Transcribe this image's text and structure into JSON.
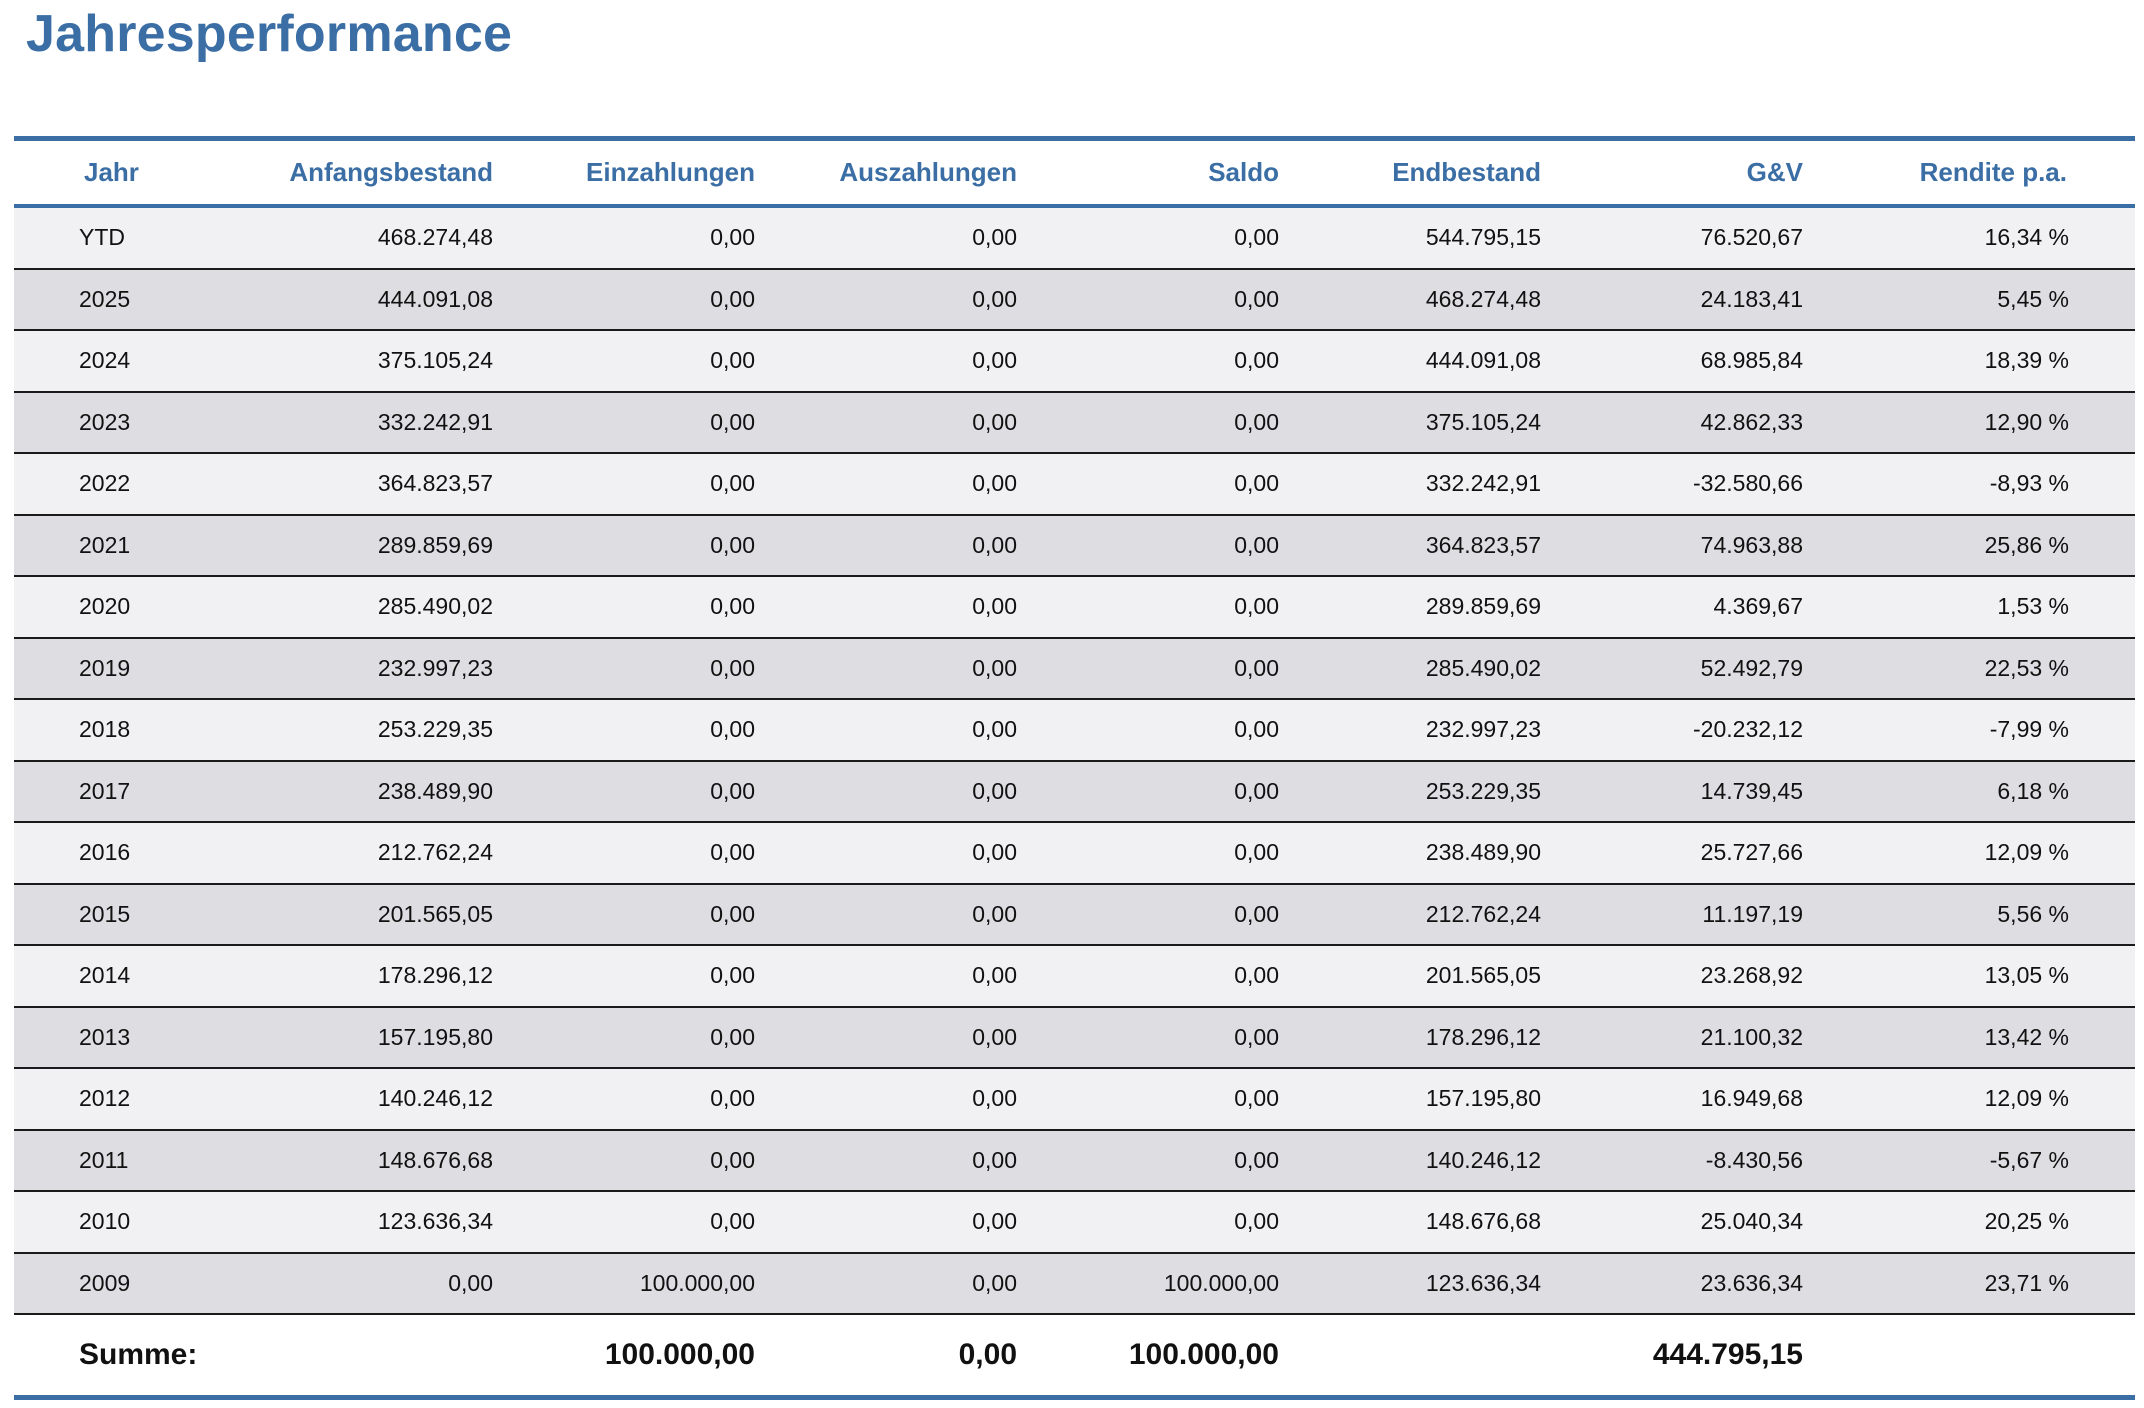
{
  "title": "Jahresperformance",
  "columns": {
    "jahr": "Jahr",
    "anfangsbestand": "Anfangsbestand",
    "einzahlungen": "Einzahlungen",
    "auszahlungen": "Auszahlungen",
    "saldo": "Saldo",
    "endbestand": "Endbestand",
    "guv": "G&V",
    "rendite": "Rendite p.a."
  },
  "rows": [
    [
      "YTD",
      "468.274,48",
      "0,00",
      "0,00",
      "0,00",
      "544.795,15",
      "76.520,67",
      "16,34 %"
    ],
    [
      "2025",
      "444.091,08",
      "0,00",
      "0,00",
      "0,00",
      "468.274,48",
      "24.183,41",
      "5,45 %"
    ],
    [
      "2024",
      "375.105,24",
      "0,00",
      "0,00",
      "0,00",
      "444.091,08",
      "68.985,84",
      "18,39 %"
    ],
    [
      "2023",
      "332.242,91",
      "0,00",
      "0,00",
      "0,00",
      "375.105,24",
      "42.862,33",
      "12,90 %"
    ],
    [
      "2022",
      "364.823,57",
      "0,00",
      "0,00",
      "0,00",
      "332.242,91",
      "-32.580,66",
      "-8,93 %"
    ],
    [
      "2021",
      "289.859,69",
      "0,00",
      "0,00",
      "0,00",
      "364.823,57",
      "74.963,88",
      "25,86 %"
    ],
    [
      "2020",
      "285.490,02",
      "0,00",
      "0,00",
      "0,00",
      "289.859,69",
      "4.369,67",
      "1,53 %"
    ],
    [
      "2019",
      "232.997,23",
      "0,00",
      "0,00",
      "0,00",
      "285.490,02",
      "52.492,79",
      "22,53 %"
    ],
    [
      "2018",
      "253.229,35",
      "0,00",
      "0,00",
      "0,00",
      "232.997,23",
      "-20.232,12",
      "-7,99 %"
    ],
    [
      "2017",
      "238.489,90",
      "0,00",
      "0,00",
      "0,00",
      "253.229,35",
      "14.739,45",
      "6,18 %"
    ],
    [
      "2016",
      "212.762,24",
      "0,00",
      "0,00",
      "0,00",
      "238.489,90",
      "25.727,66",
      "12,09 %"
    ],
    [
      "2015",
      "201.565,05",
      "0,00",
      "0,00",
      "0,00",
      "212.762,24",
      "11.197,19",
      "5,56 %"
    ],
    [
      "2014",
      "178.296,12",
      "0,00",
      "0,00",
      "0,00",
      "201.565,05",
      "23.268,92",
      "13,05 %"
    ],
    [
      "2013",
      "157.195,80",
      "0,00",
      "0,00",
      "0,00",
      "178.296,12",
      "21.100,32",
      "13,42 %"
    ],
    [
      "2012",
      "140.246,12",
      "0,00",
      "0,00",
      "0,00",
      "157.195,80",
      "16.949,68",
      "12,09 %"
    ],
    [
      "2011",
      "148.676,68",
      "0,00",
      "0,00",
      "0,00",
      "140.246,12",
      "-8.430,56",
      "-5,67 %"
    ],
    [
      "2010",
      "123.636,34",
      "0,00",
      "0,00",
      "0,00",
      "148.676,68",
      "25.040,34",
      "20,25 %"
    ],
    [
      "2009",
      "0,00",
      "100.000,00",
      "0,00",
      "100.000,00",
      "123.636,34",
      "23.636,34",
      "23,71 %"
    ]
  ],
  "summary": {
    "label": "Summe:",
    "anfangsbestand": "",
    "einzahlungen": "100.000,00",
    "auszahlungen": "0,00",
    "saldo": "100.000,00",
    "endbestand": "",
    "guv": "444.795,15",
    "rendite": ""
  }
}
